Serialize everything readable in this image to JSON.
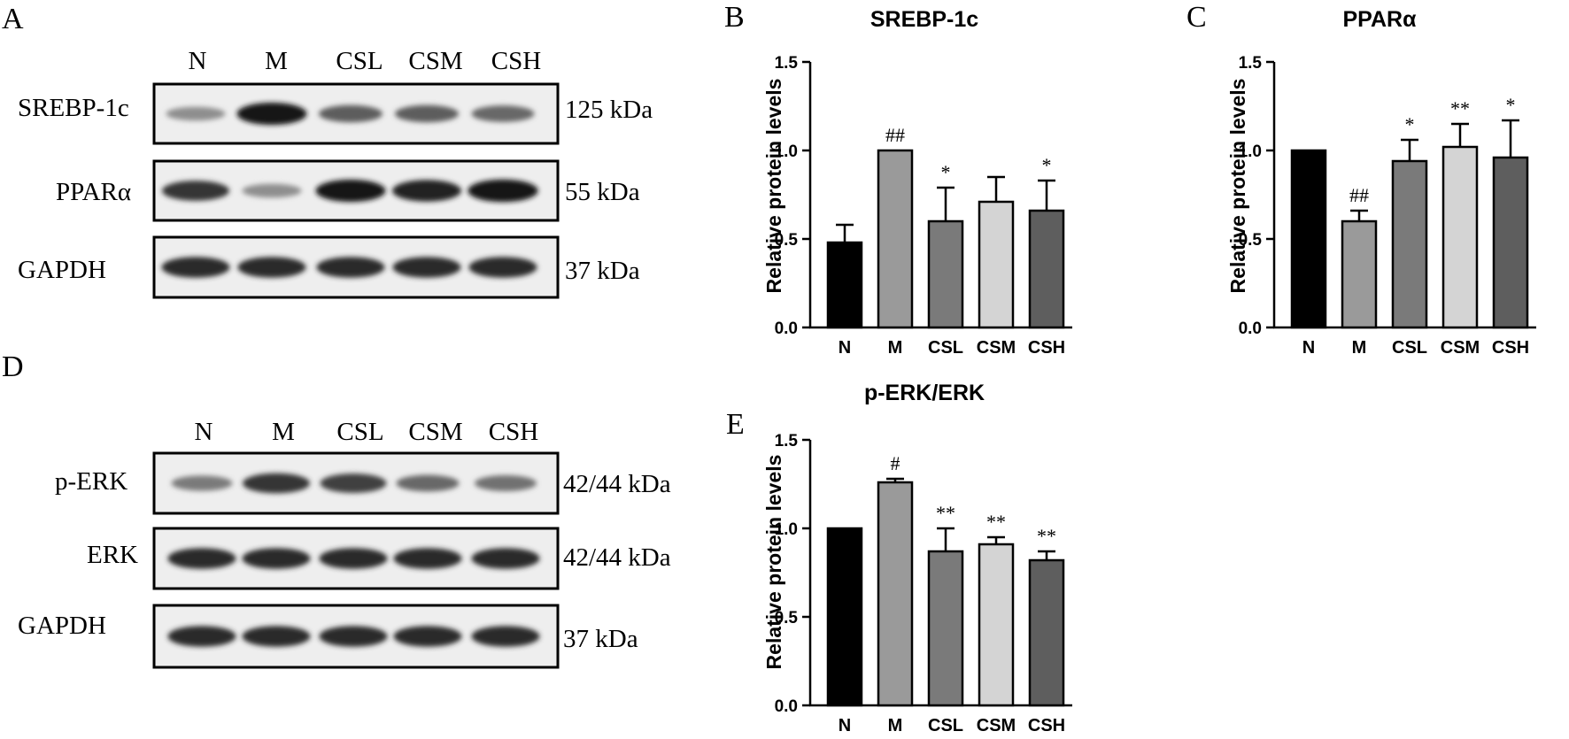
{
  "panels": {
    "A": "A",
    "B": "B",
    "C": "C",
    "D": "D",
    "E": "E"
  },
  "blots": [
    {
      "lanes": [
        "N",
        "M",
        "CSL",
        "CSM",
        "CSH"
      ],
      "rows": [
        {
          "label": "SREBP-1c",
          "mw": "125 kDa",
          "intensity": [
            0.35,
            0.95,
            0.6,
            0.6,
            0.55
          ]
        },
        {
          "label": "PPARα",
          "mw": "55 kDa",
          "intensity": [
            0.8,
            0.35,
            0.95,
            0.9,
            0.97
          ]
        },
        {
          "label": "GAPDH",
          "mw": "37 kDa",
          "intensity": [
            0.85,
            0.85,
            0.85,
            0.85,
            0.85
          ]
        }
      ]
    },
    {
      "lanes": [
        "N",
        "M",
        "CSL",
        "CSM",
        "CSH"
      ],
      "rows": [
        {
          "label": "p-ERK",
          "mw": "42/44 kDa",
          "intensity": [
            0.45,
            0.8,
            0.75,
            0.55,
            0.5
          ]
        },
        {
          "label": "ERK",
          "mw": "42/44 kDa",
          "intensity": [
            0.85,
            0.85,
            0.85,
            0.85,
            0.85
          ]
        },
        {
          "label": "GAPDH",
          "mw": "37 kDa",
          "intensity": [
            0.85,
            0.85,
            0.85,
            0.85,
            0.85
          ]
        }
      ]
    }
  ],
  "chart_data": [
    {
      "type": "bar",
      "title": "SREBP-1c",
      "ylabel": "Relative protein levels",
      "xlabel": "",
      "categories": [
        "N",
        "M",
        "CSL",
        "CSM",
        "CSH"
      ],
      "values": [
        0.48,
        1.0,
        0.6,
        0.71,
        0.66
      ],
      "errors": [
        0.1,
        0.0,
        0.19,
        0.14,
        0.17
      ],
      "significance": [
        "",
        "##",
        "*",
        "",
        "*"
      ],
      "ylim": [
        0,
        1.5
      ],
      "yticks": [
        "0.0",
        "0.5",
        "1.0",
        "1.5"
      ],
      "colors": [
        "#000000",
        "#9a9a9a",
        "#7a7a7a",
        "#d4d4d4",
        "#5e5e5e"
      ]
    },
    {
      "type": "bar",
      "title": "PPARα",
      "ylabel": "Relative protein levels",
      "xlabel": "",
      "categories": [
        "N",
        "M",
        "CSL",
        "CSM",
        "CSH"
      ],
      "values": [
        1.0,
        0.6,
        0.94,
        1.02,
        0.96
      ],
      "errors": [
        0.0,
        0.06,
        0.12,
        0.13,
        0.21
      ],
      "significance": [
        "",
        "##",
        "*",
        "**",
        "*"
      ],
      "ylim": [
        0,
        1.5
      ],
      "yticks": [
        "0.0",
        "0.5",
        "1.0",
        "1.5"
      ],
      "colors": [
        "#000000",
        "#9a9a9a",
        "#7a7a7a",
        "#d4d4d4",
        "#5e5e5e"
      ]
    },
    {
      "type": "bar",
      "title": "p-ERK/ERK",
      "ylabel": "Relative protein levels",
      "xlabel": "",
      "categories": [
        "N",
        "M",
        "CSL",
        "CSM",
        "CSH"
      ],
      "values": [
        1.0,
        1.26,
        0.87,
        0.91,
        0.82
      ],
      "errors": [
        0.0,
        0.02,
        0.13,
        0.04,
        0.05
      ],
      "significance": [
        "",
        "#",
        "**",
        "**",
        "**"
      ],
      "ylim": [
        0,
        1.5
      ],
      "yticks": [
        "0.0",
        "0.5",
        "1.0",
        "1.5"
      ],
      "colors": [
        "#000000",
        "#9a9a9a",
        "#7a7a7a",
        "#d4d4d4",
        "#5e5e5e"
      ]
    }
  ]
}
